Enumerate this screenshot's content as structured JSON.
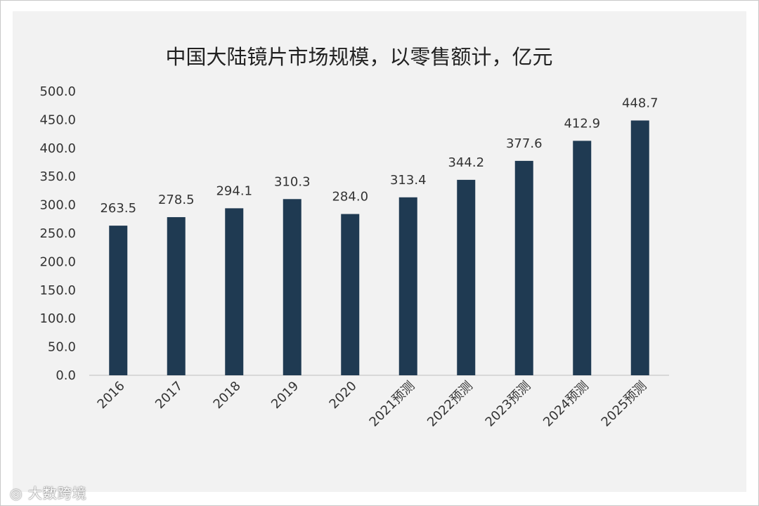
{
  "chart_data": {
    "type": "bar",
    "title": "中国大陆镜片市场规模，以零售额计，亿元",
    "categories": [
      "2016",
      "2017",
      "2018",
      "2019",
      "2020",
      "2021预测",
      "2022预测",
      "2023预测",
      "2024预测",
      "2025预测"
    ],
    "values": [
      263.5,
      278.5,
      294.1,
      310.3,
      284.0,
      313.4,
      344.2,
      377.6,
      412.9,
      448.7
    ],
    "value_labels": [
      "263.5",
      "278.5",
      "294.1",
      "310.3",
      "284.0",
      "313.4",
      "344.2",
      "377.6",
      "412.9",
      "448.7"
    ],
    "ylim": [
      0,
      500
    ],
    "yticks": [
      "0.0",
      "50.0",
      "100.0",
      "150.0",
      "200.0",
      "250.0",
      "300.0",
      "350.0",
      "400.0",
      "450.0",
      "500.0"
    ],
    "grid": false,
    "bar_color": "#1f3a52",
    "xlabel": "",
    "ylabel": ""
  },
  "watermark": {
    "text": "大数跨境",
    "icon": "logo-icon"
  }
}
